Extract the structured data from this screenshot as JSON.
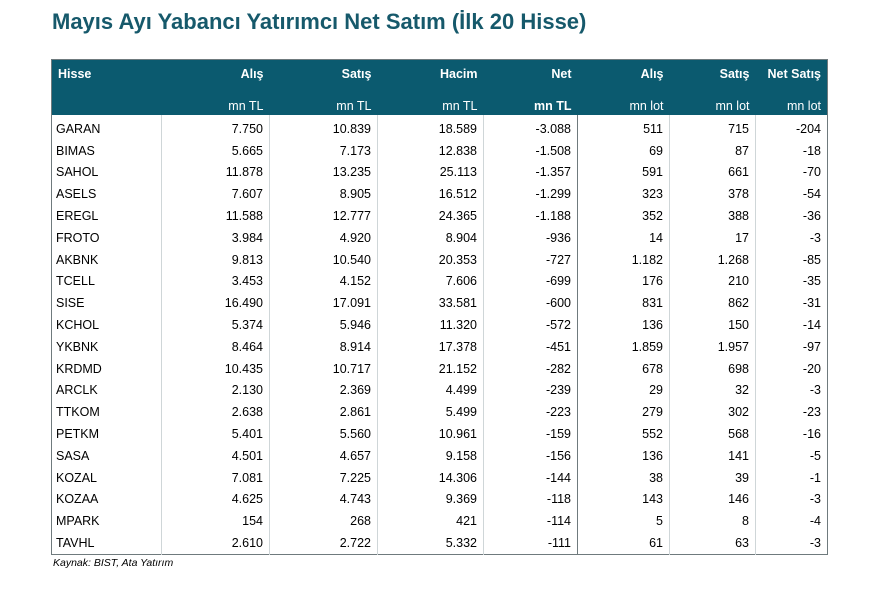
{
  "title": "Mayıs Ayı Yabancı Yatırımcı Net Satım (İlk 20 Hisse)",
  "headers": [
    "Hisse",
    "Alış",
    "Satış",
    "Hacim",
    "Net",
    "Alış",
    "Satış",
    "Net Satış"
  ],
  "units": [
    "",
    "mn TL",
    "mn TL",
    "mn TL",
    "mn TL",
    "mn lot",
    "mn lot",
    "mn lot"
  ],
  "rows": [
    [
      "GARAN",
      "7.750",
      "10.839",
      "18.589",
      "-3.088",
      "511",
      "715",
      "-204"
    ],
    [
      "BIMAS",
      "5.665",
      "7.173",
      "12.838",
      "-1.508",
      "69",
      "87",
      "-18"
    ],
    [
      "SAHOL",
      "11.878",
      "13.235",
      "25.113",
      "-1.357",
      "591",
      "661",
      "-70"
    ],
    [
      "ASELS",
      "7.607",
      "8.905",
      "16.512",
      "-1.299",
      "323",
      "378",
      "-54"
    ],
    [
      "EREGL",
      "11.588",
      "12.777",
      "24.365",
      "-1.188",
      "352",
      "388",
      "-36"
    ],
    [
      "FROTO",
      "3.984",
      "4.920",
      "8.904",
      "-936",
      "14",
      "17",
      "-3"
    ],
    [
      "AKBNK",
      "9.813",
      "10.540",
      "20.353",
      "-727",
      "1.182",
      "1.268",
      "-85"
    ],
    [
      "TCELL",
      "3.453",
      "4.152",
      "7.606",
      "-699",
      "176",
      "210",
      "-35"
    ],
    [
      "SISE",
      "16.490",
      "17.091",
      "33.581",
      "-600",
      "831",
      "862",
      "-31"
    ],
    [
      "KCHOL",
      "5.374",
      "5.946",
      "11.320",
      "-572",
      "136",
      "150",
      "-14"
    ],
    [
      "YKBNK",
      "8.464",
      "8.914",
      "17.378",
      "-451",
      "1.859",
      "1.957",
      "-97"
    ],
    [
      "KRDMD",
      "10.435",
      "10.717",
      "21.152",
      "-282",
      "678",
      "698",
      "-20"
    ],
    [
      "ARCLK",
      "2.130",
      "2.369",
      "4.499",
      "-239",
      "29",
      "32",
      "-3"
    ],
    [
      "TTKOM",
      "2.638",
      "2.861",
      "5.499",
      "-223",
      "279",
      "302",
      "-23"
    ],
    [
      "PETKM",
      "5.401",
      "5.560",
      "10.961",
      "-159",
      "552",
      "568",
      "-16"
    ],
    [
      "SASA",
      "4.501",
      "4.657",
      "9.158",
      "-156",
      "136",
      "141",
      "-5"
    ],
    [
      "KOZAL",
      "7.081",
      "7.225",
      "14.306",
      "-144",
      "38",
      "39",
      "-1"
    ],
    [
      "KOZAA",
      "4.625",
      "4.743",
      "9.369",
      "-118",
      "143",
      "146",
      "-3"
    ],
    [
      "MPARK",
      "154",
      "268",
      "421",
      "-114",
      "5",
      "8",
      "-4"
    ],
    [
      "TAVHL",
      "2.610",
      "2.722",
      "5.332",
      "-111",
      "61",
      "63",
      "-3"
    ]
  ],
  "source": "Kaynak: BIST, Ata Yatırım"
}
